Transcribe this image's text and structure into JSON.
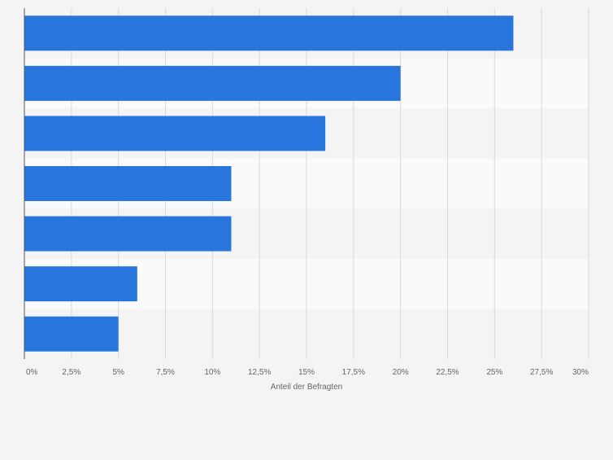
{
  "chart_data": {
    "type": "bar",
    "orientation": "horizontal",
    "categories": [
      "",
      "",
      "",
      "",
      "",
      "",
      ""
    ],
    "values": [
      26,
      20,
      16,
      11,
      11,
      6,
      5
    ],
    "xlabel": "Anteil der Befragten",
    "xlim": [
      0,
      30
    ],
    "ticks": [
      0,
      2.5,
      5,
      7.5,
      10,
      12.5,
      15,
      17.5,
      20,
      22.5,
      25,
      27.5,
      30
    ],
    "tick_labels": [
      "0%",
      "2,5%",
      "5%",
      "7,5%",
      "10%",
      "12,5%",
      "15%",
      "17,5%",
      "20%",
      "22,5%",
      "25%",
      "27,5%",
      "30%"
    ],
    "grid": true,
    "legend": "none"
  },
  "colors": {
    "bar": "#2876dd",
    "background": "#f4f4f4",
    "band_light": "#fafafa",
    "band_dark": "#f4f4f4",
    "grid": "#d9d9d9",
    "axis": "#555555",
    "tick_text": "#666666"
  }
}
